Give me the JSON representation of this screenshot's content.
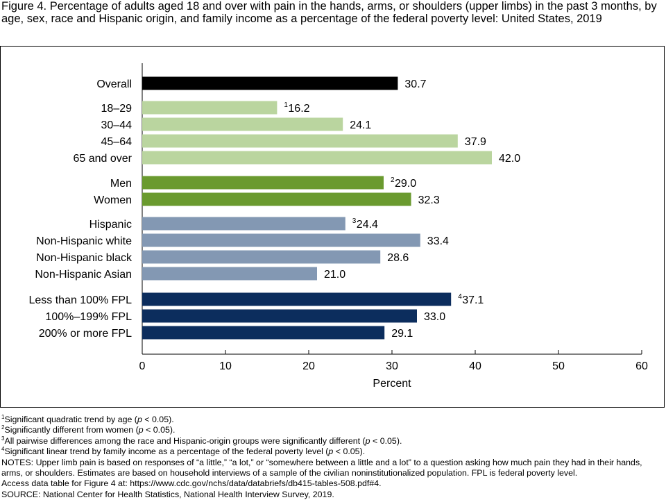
{
  "title": "Figure 4. Percentage of adults aged 18 and over with pain in the hands, arms, or shoulders (upper limbs) in the past 3 months, by age, sex, race and Hispanic origin, and family income as a percentage of the federal poverty level: United States, 2019",
  "chart_data": {
    "type": "bar",
    "orientation": "horizontal",
    "categories": [
      "Overall",
      "18–29",
      "30–44",
      "45–64",
      "65 and over",
      "Men",
      "Women",
      "Hispanic",
      "Non-Hispanic white",
      "Non-Hispanic black",
      "Non-Hispanic Asian",
      "Less than 100% FPL",
      "100%–199% FPL",
      "200% or more FPL"
    ],
    "values": [
      30.7,
      16.2,
      24.1,
      37.9,
      42.0,
      29.0,
      32.3,
      24.4,
      33.4,
      28.6,
      21.0,
      37.1,
      33.0,
      29.1
    ],
    "value_labels": [
      "30.7",
      "16.2",
      "24.1",
      "37.9",
      "42.0",
      "29.0",
      "32.3",
      "24.4",
      "33.4",
      "28.6",
      "21.0",
      "37.1",
      "33.0",
      "29.1"
    ],
    "footnote_marks": [
      "",
      "1",
      "",
      "",
      "",
      "2",
      "",
      "3",
      "",
      "",
      "",
      "4",
      "",
      ""
    ],
    "groups": [
      "overall",
      "age",
      "age",
      "age",
      "age",
      "sex",
      "sex",
      "race",
      "race",
      "race",
      "race",
      "income",
      "income",
      "income"
    ],
    "group_colors": {
      "overall": "#000000",
      "age": "#bad59f",
      "sex": "#6a9a2f",
      "race": "#8398b3",
      "income": "#0c2d5d"
    },
    "xlabel": "Percent",
    "xlim": [
      0,
      60
    ],
    "xticks": [
      "0",
      "10",
      "20",
      "30",
      "40",
      "50",
      "60"
    ],
    "grid": false,
    "legend": "none"
  },
  "notes": [
    {
      "mark": "1",
      "text": "Significant quadratic trend by age (",
      "italic": "p",
      "after": " < 0.05)."
    },
    {
      "mark": "2",
      "text": "Significantly different from women (",
      "italic": "p",
      "after": " < 0.05)."
    },
    {
      "mark": "3",
      "text": "All pairwise differences among the race and Hispanic-origin groups were significantly different (",
      "italic": "p",
      "after": " < 0.05)."
    },
    {
      "mark": "4",
      "text": "Significant linear trend by family income as a percentage of the federal poverty level (",
      "italic": "p",
      "after": " < 0.05)."
    }
  ],
  "notes_text": "NOTES: Upper limb pain is based on responses of “a little,” “a lot,” or “somewhere between a little and a lot” to a question asking how much pain they had in their hands, arms, or shoulders. Estimates are based on household interviews of a sample of the civilian noninstitutionalized population. FPL is federal poverty level.",
  "access_text": "Access data table for Figure 4 at: https://www.cdc.gov/nchs/data/databriefs/db415-tables-508.pdf#4.",
  "source_text": "SOURCE: National Center for Health Statistics, National Health Interview Survey, 2019."
}
